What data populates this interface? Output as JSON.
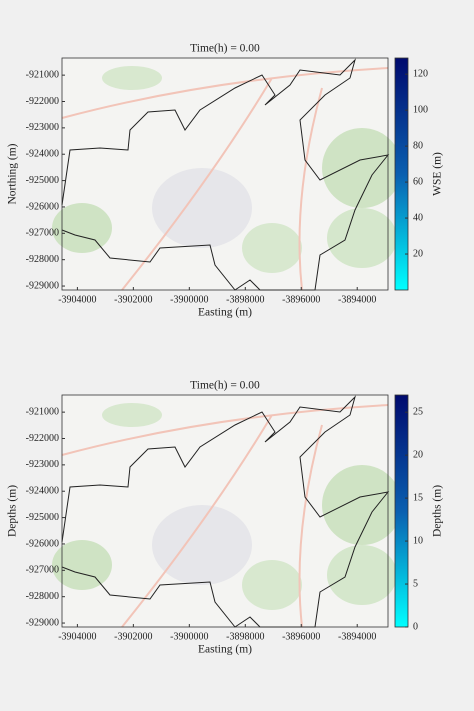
{
  "chart_data": [
    {
      "type": "map",
      "title": "Time(h) = 0.00",
      "xlabel": "Easting (m)",
      "ylabel": "Northing (m)",
      "xlim": [
        -3904550,
        -3892900
      ],
      "ylim": [
        -929150,
        -920350
      ],
      "xticks": [
        -3904000,
        -3902000,
        -3900000,
        -3898000,
        -3896000,
        -3894000
      ],
      "yticks": [
        -929000,
        -928000,
        -927000,
        -926000,
        -925000,
        -924000,
        -923000,
        -922000,
        -921000
      ],
      "colorbar": {
        "label": "WSE (m)",
        "lim": [
          0,
          129
        ],
        "ticks": [
          20,
          40,
          60,
          80,
          100,
          120
        ],
        "colors": [
          "#00ffff",
          "#0a5fb0",
          "#000a6e"
        ]
      }
    },
    {
      "type": "map",
      "title": "Time(h) = 0.00",
      "xlabel": "Easting (m)",
      "ylabel": "Depths (m)",
      "xlim": [
        -3904550,
        -3892900
      ],
      "ylim": [
        -929150,
        -920350
      ],
      "xticks": [
        -3904000,
        -3902000,
        -3900000,
        -3898000,
        -3896000,
        -3894000
      ],
      "yticks": [
        -929000,
        -928000,
        -927000,
        -926000,
        -925000,
        -924000,
        -923000,
        -922000,
        -921000
      ],
      "colorbar": {
        "label": "Depths (m)",
        "lim": [
          0,
          27
        ],
        "ticks": [
          0,
          5,
          10,
          15,
          20,
          25
        ],
        "colors": [
          "#00ffff",
          "#0a5fb0",
          "#000a6e"
        ]
      }
    }
  ]
}
